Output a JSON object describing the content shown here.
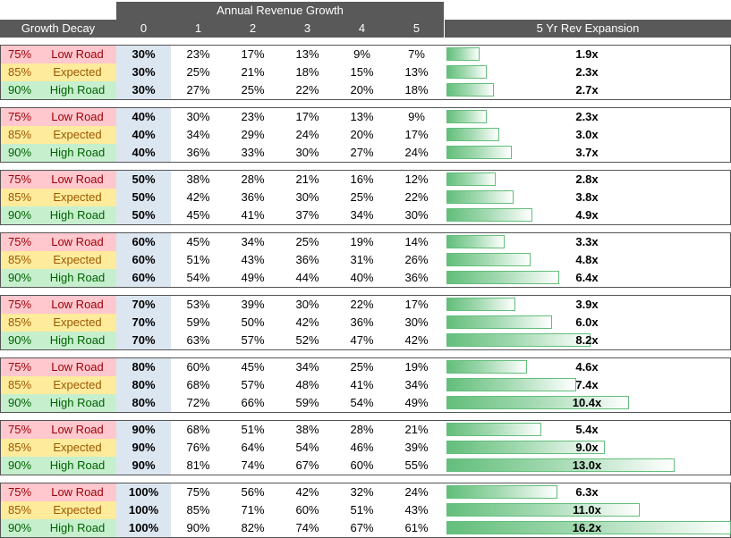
{
  "headers": {
    "annual_revenue_growth": "Annual Revenue Growth",
    "growth_decay": "Growth Decay",
    "years": [
      "0",
      "1",
      "2",
      "3",
      "4",
      "5"
    ],
    "expansion": "5 Yr Rev Expansion"
  },
  "colors": {
    "low_fill": "#ffc7ce",
    "low_text": "#9c0006",
    "expected_fill": "#ffeb9c",
    "expected_text": "#9c5700",
    "high_fill": "#c6efce",
    "high_text": "#006100",
    "year0_fill": "#dce6f1",
    "header_fill": "#595959",
    "bar_color": "#63be7b"
  },
  "groups": [
    {
      "rows": [
        {
          "decay": "75%",
          "scenario": "Low Road",
          "growth": [
            "30%",
            "23%",
            "17%",
            "13%",
            "9%",
            "7%"
          ],
          "expansion": "1.9x",
          "expansion_value": 1.9
        },
        {
          "decay": "85%",
          "scenario": "Expected",
          "growth": [
            "30%",
            "25%",
            "21%",
            "18%",
            "15%",
            "13%"
          ],
          "expansion": "2.3x",
          "expansion_value": 2.3
        },
        {
          "decay": "90%",
          "scenario": "High Road",
          "growth": [
            "30%",
            "27%",
            "25%",
            "22%",
            "20%",
            "18%"
          ],
          "expansion": "2.7x",
          "expansion_value": 2.7
        }
      ]
    },
    {
      "rows": [
        {
          "decay": "75%",
          "scenario": "Low Road",
          "growth": [
            "40%",
            "30%",
            "23%",
            "17%",
            "13%",
            "9%"
          ],
          "expansion": "2.3x",
          "expansion_value": 2.3
        },
        {
          "decay": "85%",
          "scenario": "Expected",
          "growth": [
            "40%",
            "34%",
            "29%",
            "24%",
            "20%",
            "17%"
          ],
          "expansion": "3.0x",
          "expansion_value": 3.0
        },
        {
          "decay": "90%",
          "scenario": "High Road",
          "growth": [
            "40%",
            "36%",
            "33%",
            "30%",
            "27%",
            "24%"
          ],
          "expansion": "3.7x",
          "expansion_value": 3.7
        }
      ]
    },
    {
      "rows": [
        {
          "decay": "75%",
          "scenario": "Low Road",
          "growth": [
            "50%",
            "38%",
            "28%",
            "21%",
            "16%",
            "12%"
          ],
          "expansion": "2.8x",
          "expansion_value": 2.8
        },
        {
          "decay": "85%",
          "scenario": "Expected",
          "growth": [
            "50%",
            "42%",
            "36%",
            "30%",
            "25%",
            "22%"
          ],
          "expansion": "3.8x",
          "expansion_value": 3.8
        },
        {
          "decay": "90%",
          "scenario": "High Road",
          "growth": [
            "50%",
            "45%",
            "41%",
            "37%",
            "34%",
            "30%"
          ],
          "expansion": "4.9x",
          "expansion_value": 4.9
        }
      ]
    },
    {
      "rows": [
        {
          "decay": "75%",
          "scenario": "Low Road",
          "growth": [
            "60%",
            "45%",
            "34%",
            "25%",
            "19%",
            "14%"
          ],
          "expansion": "3.3x",
          "expansion_value": 3.3
        },
        {
          "decay": "85%",
          "scenario": "Expected",
          "growth": [
            "60%",
            "51%",
            "43%",
            "36%",
            "31%",
            "26%"
          ],
          "expansion": "4.8x",
          "expansion_value": 4.8
        },
        {
          "decay": "90%",
          "scenario": "High Road",
          "growth": [
            "60%",
            "54%",
            "49%",
            "44%",
            "40%",
            "36%"
          ],
          "expansion": "6.4x",
          "expansion_value": 6.4
        }
      ]
    },
    {
      "rows": [
        {
          "decay": "75%",
          "scenario": "Low Road",
          "growth": [
            "70%",
            "53%",
            "39%",
            "30%",
            "22%",
            "17%"
          ],
          "expansion": "3.9x",
          "expansion_value": 3.9
        },
        {
          "decay": "85%",
          "scenario": "Expected",
          "growth": [
            "70%",
            "59%",
            "50%",
            "42%",
            "36%",
            "30%"
          ],
          "expansion": "6.0x",
          "expansion_value": 6.0
        },
        {
          "decay": "90%",
          "scenario": "High Road",
          "growth": [
            "70%",
            "63%",
            "57%",
            "52%",
            "47%",
            "42%"
          ],
          "expansion": "8.2x",
          "expansion_value": 8.2
        }
      ]
    },
    {
      "rows": [
        {
          "decay": "75%",
          "scenario": "Low Road",
          "growth": [
            "80%",
            "60%",
            "45%",
            "34%",
            "25%",
            "19%"
          ],
          "expansion": "4.6x",
          "expansion_value": 4.6
        },
        {
          "decay": "85%",
          "scenario": "Expected",
          "growth": [
            "80%",
            "68%",
            "57%",
            "48%",
            "41%",
            "34%"
          ],
          "expansion": "7.4x",
          "expansion_value": 7.4
        },
        {
          "decay": "90%",
          "scenario": "High Road",
          "growth": [
            "80%",
            "72%",
            "66%",
            "59%",
            "54%",
            "49%"
          ],
          "expansion": "10.4x",
          "expansion_value": 10.4
        }
      ]
    },
    {
      "rows": [
        {
          "decay": "75%",
          "scenario": "Low Road",
          "growth": [
            "90%",
            "68%",
            "51%",
            "38%",
            "28%",
            "21%"
          ],
          "expansion": "5.4x",
          "expansion_value": 5.4
        },
        {
          "decay": "85%",
          "scenario": "Expected",
          "growth": [
            "90%",
            "76%",
            "64%",
            "54%",
            "46%",
            "39%"
          ],
          "expansion": "9.0x",
          "expansion_value": 9.0
        },
        {
          "decay": "90%",
          "scenario": "High Road",
          "growth": [
            "90%",
            "81%",
            "74%",
            "67%",
            "60%",
            "55%"
          ],
          "expansion": "13.0x",
          "expansion_value": 13.0
        }
      ]
    },
    {
      "rows": [
        {
          "decay": "75%",
          "scenario": "Low Road",
          "growth": [
            "100%",
            "75%",
            "56%",
            "42%",
            "32%",
            "24%"
          ],
          "expansion": "6.3x",
          "expansion_value": 6.3
        },
        {
          "decay": "85%",
          "scenario": "Expected",
          "growth": [
            "100%",
            "85%",
            "71%",
            "60%",
            "51%",
            "43%"
          ],
          "expansion": "11.0x",
          "expansion_value": 11.0
        },
        {
          "decay": "90%",
          "scenario": "High Road",
          "growth": [
            "100%",
            "90%",
            "82%",
            "74%",
            "67%",
            "61%"
          ],
          "expansion": "16.2x",
          "expansion_value": 16.2
        }
      ]
    }
  ]
}
